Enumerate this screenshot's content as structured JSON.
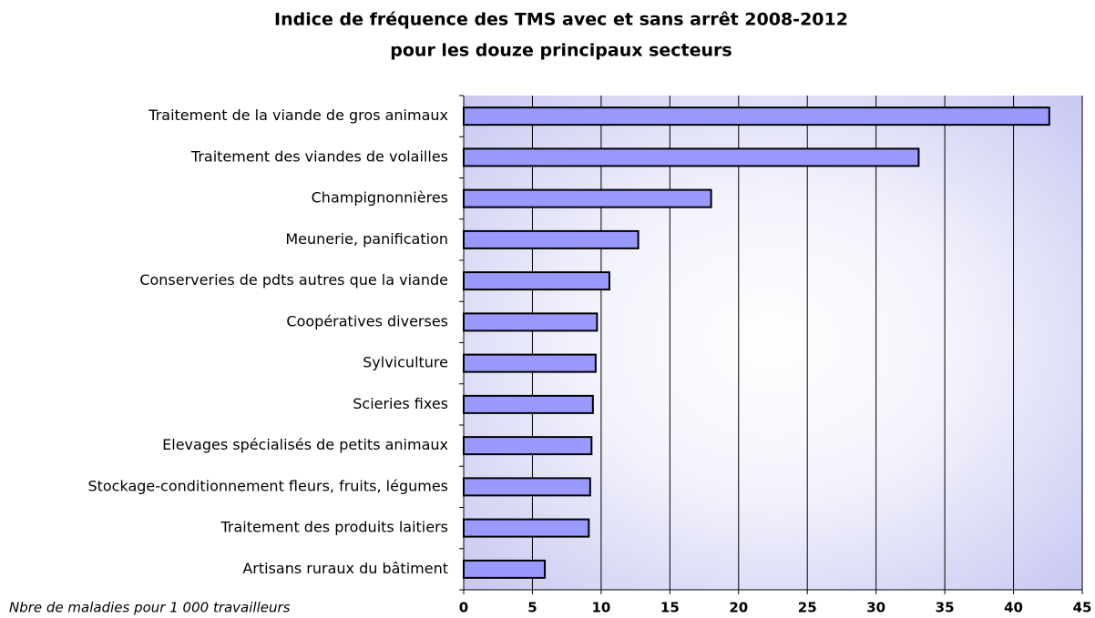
{
  "chart_data": {
    "type": "bar",
    "orientation": "horizontal",
    "title": "Indice de fréquence des TMS avec et sans arrêt 2008-2012",
    "subtitle": "pour les douze principaux secteurs",
    "x_label": "Nbre de maladies pour 1 000 travailleurs",
    "categories": [
      "Traitement de la viande de gros animaux",
      "Traitement des viandes de volailles",
      "Champignonnières",
      "Meunerie, panification",
      "Conserveries de pdts autres que la viande",
      "Coopératives diverses",
      "Sylviculture",
      "Scieries fixes",
      "Elevages spécialisés de petits animaux",
      "Stockage-conditionnement fleurs, fruits, légumes",
      "Traitement des produits laitiers",
      "Artisans ruraux du bâtiment"
    ],
    "values": [
      42.6,
      33.1,
      18.0,
      12.7,
      10.6,
      9.7,
      9.6,
      9.4,
      9.3,
      9.2,
      9.1,
      5.9
    ],
    "color": "#9999ff",
    "xlim": [
      0,
      45
    ],
    "xticks": [
      0,
      5,
      10,
      15,
      20,
      25,
      30,
      35,
      40,
      45
    ],
    "grid": true
  }
}
